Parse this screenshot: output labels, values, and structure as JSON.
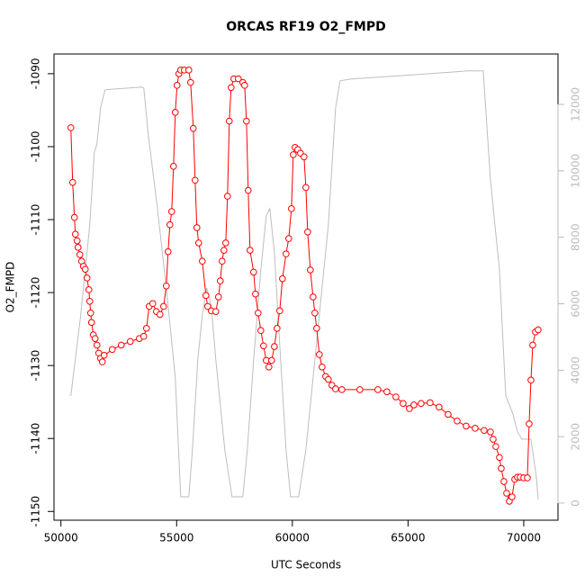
{
  "chart_data": {
    "type": "line",
    "title": "ORCAS RF19 O2_FMPD",
    "x_label": "UTC Seconds",
    "y_label": "O2_FMPD",
    "xlim": [
      49700,
      71480
    ],
    "ylim": [
      -1151.2,
      -1087.3
    ],
    "y2lim": [
      -515,
      13517
    ],
    "xticks": [
      50000,
      55000,
      60000,
      65000,
      70000
    ],
    "yticks": [
      -1150,
      -1140,
      -1130,
      -1120,
      -1110,
      -1100,
      -1090
    ],
    "y2ticks": [
      0,
      2000,
      4000,
      6000,
      8000,
      10000,
      12000
    ],
    "y2tick_color": "#bbbbbb",
    "series": [
      {
        "color": "#ff0000",
        "markers": true,
        "x": [
          50428,
          50506,
          50584,
          50623,
          50700,
          50739,
          50817,
          50895,
          50973,
          51051,
          51128,
          51206,
          51245,
          51284,
          51323,
          51401,
          51479,
          51556,
          51634,
          51712,
          51790,
          51868,
          52218,
          52607,
          52996,
          53385,
          53580,
          53696,
          53813,
          53969,
          54125,
          54280,
          54436,
          54553,
          54630,
          54708,
          54786,
          54864,
          54942,
          55019,
          55097,
          55175,
          55331,
          55525,
          55603,
          55720,
          55798,
          55875,
          55953,
          56109,
          56265,
          56342,
          56498,
          56693,
          56809,
          56887,
          56965,
          57043,
          57121,
          57198,
          57276,
          57354,
          57471,
          57665,
          57860,
          57938,
          58016,
          58093,
          58171,
          58327,
          58405,
          58521,
          58638,
          58755,
          58872,
          58988,
          59105,
          59222,
          59339,
          59455,
          59572,
          59728,
          59844,
          59961,
          60039,
          60117,
          60233,
          60350,
          60506,
          60584,
          60661,
          60778,
          60895,
          60973,
          61051,
          61167,
          61284,
          61440,
          61556,
          61712,
          61868,
          62140,
          62918,
          63696,
          64086,
          64475,
          64786,
          65058,
          65253,
          65564,
          65953,
          66342,
          66731,
          67121,
          67510,
          67899,
          68288,
          68560,
          68677,
          68794,
          68949,
          69027,
          69144,
          69261,
          69377,
          69494,
          69611,
          69728,
          69844,
          70000,
          70156,
          70233,
          70311,
          70389,
          70506,
          70623
        ],
        "values": [
          -1097.4,
          -1104.9,
          -1109.7,
          -1112.0,
          -1112.9,
          -1113.8,
          -1114.8,
          -1115.7,
          -1116.4,
          -1116.8,
          -1118.0,
          -1119.6,
          -1121.2,
          -1122.8,
          -1124.1,
          -1125.8,
          -1126.3,
          -1127.2,
          -1128.3,
          -1129.0,
          -1129.5,
          -1128.6,
          -1127.8,
          -1127.2,
          -1126.7,
          -1126.3,
          -1126.0,
          -1124.9,
          -1121.9,
          -1121.5,
          -1122.6,
          -1123.0,
          -1121.9,
          -1119.1,
          -1114.4,
          -1110.7,
          -1108.9,
          -1102.7,
          -1095.3,
          -1091.6,
          -1090.0,
          -1089.5,
          -1089.5,
          -1089.5,
          -1091.2,
          -1097.5,
          -1104.6,
          -1111.1,
          -1113.2,
          -1115.7,
          -1120.4,
          -1121.9,
          -1122.5,
          -1122.6,
          -1120.6,
          -1118.4,
          -1115.7,
          -1114.2,
          -1113.2,
          -1106.8,
          -1096.5,
          -1091.9,
          -1090.7,
          -1090.7,
          -1091.2,
          -1091.6,
          -1096.5,
          -1106.0,
          -1114.2,
          -1117.2,
          -1120.2,
          -1122.8,
          -1125.2,
          -1127.3,
          -1129.3,
          -1130.2,
          -1129.3,
          -1127.4,
          -1124.9,
          -1122.5,
          -1118.1,
          -1114.7,
          -1112.6,
          -1108.5,
          -1101.1,
          -1100.1,
          -1100.4,
          -1100.9,
          -1101.4,
          -1105.6,
          -1111.7,
          -1116.9,
          -1120.6,
          -1122.8,
          -1124.9,
          -1128.5,
          -1130.2,
          -1131.5,
          -1131.9,
          -1132.7,
          -1133.2,
          -1133.3,
          -1133.3,
          -1133.3,
          -1133.6,
          -1134.3,
          -1135.2,
          -1135.9,
          -1135.4,
          -1135.2,
          -1135.1,
          -1135.7,
          -1136.7,
          -1137.6,
          -1138.3,
          -1138.6,
          -1138.9,
          -1139.1,
          -1140.1,
          -1141.1,
          -1142.6,
          -1144.1,
          -1145.9,
          -1147.5,
          -1148.6,
          -1148.0,
          -1145.6,
          -1145.3,
          -1145.3,
          -1145.4,
          -1145.4,
          -1138.0,
          -1132.0,
          -1127.2,
          -1125.4,
          -1125.1
        ]
      },
      {
        "color": "#bebebe",
        "markers": false,
        "axis": "y2",
        "x": [
          50428,
          50856,
          51245,
          51440,
          51556,
          51712,
          51907,
          52412,
          53502,
          53580,
          53774,
          54163,
          54553,
          54942,
          55175,
          55525,
          55681,
          55914,
          56109,
          56303,
          56498,
          56693,
          57082,
          57393,
          57860,
          58054,
          58327,
          58638,
          58872,
          59027,
          59222,
          59494,
          59728,
          59922,
          60272,
          60584,
          60895,
          61167,
          61556,
          61868,
          62062,
          62529,
          64864,
          67588,
          68249,
          68560,
          68949,
          69222,
          69533,
          69728,
          69922,
          70311,
          70545,
          70623
        ],
        "values": [
          3225,
          5664,
          8374,
          10542,
          10813,
          11897,
          12439,
          12466,
          12520,
          12493,
          11084,
          8916,
          6477,
          3767,
          190,
          190,
          1599,
          4309,
          5664,
          6477,
          5935,
          4309,
          1599,
          190,
          190,
          1599,
          4309,
          7019,
          8645,
          8862,
          7561,
          4309,
          1599,
          190,
          190,
          1599,
          3767,
          5664,
          8374,
          11897,
          12710,
          12764,
          12873,
          13008,
          13008,
          9729,
          7019,
          3225,
          2683,
          2141,
          1924,
          1924,
          786,
          108
        ]
      }
    ]
  }
}
